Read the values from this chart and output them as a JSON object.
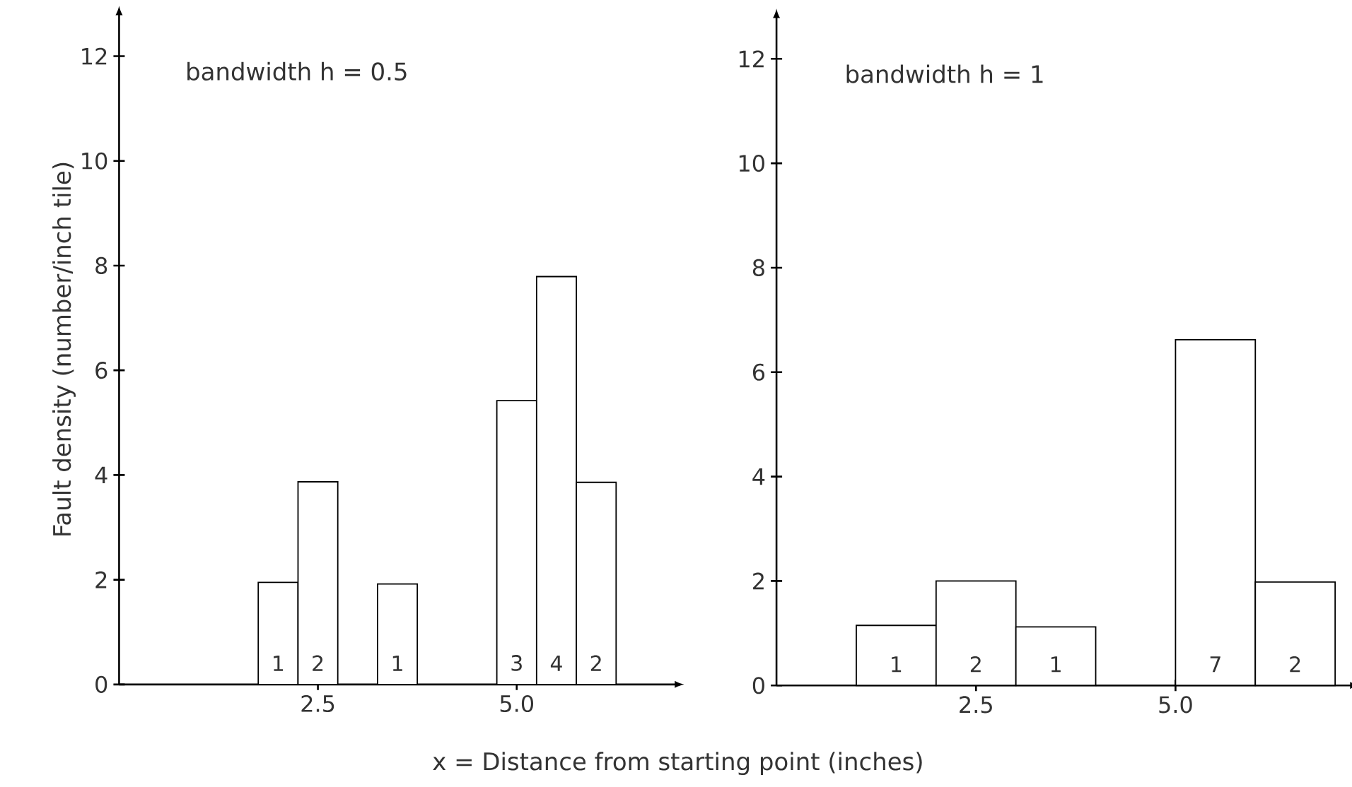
{
  "chart_data": [
    {
      "type": "histogram",
      "title": "bandwidth h = 0.5",
      "xlabel": "x = Distance from starting point (inches)",
      "ylabel": "Fault density (number/inch tile)",
      "bins": [
        1.75,
        2.25,
        2.75,
        3.25,
        3.75,
        4.25,
        4.75,
        5.25,
        5.75,
        6.25
      ],
      "values": [
        1.95,
        3.87,
        0,
        1.92,
        0,
        0,
        5.42,
        7.79,
        3.86
      ],
      "color": "#ffffff",
      "xlim": [
        0,
        7
      ],
      "ylim": [
        0,
        12.8
      ],
      "xticks": [
        2.5,
        {
          "value": 5,
          "label": "5.0"
        }
      ],
      "yticks": [
        0,
        2,
        4,
        6,
        8,
        10,
        12
      ],
      "annotations": [
        "1",
        "2",
        "1",
        "3",
        "4",
        "2"
      ]
    },
    {
      "type": "histogram",
      "title": "bandwidth h = 1",
      "bins": [
        1,
        2,
        3,
        4,
        5,
        6,
        7
      ],
      "values": [
        1.15,
        2.0,
        1.12,
        0,
        6.62,
        1.98
      ],
      "color": "#ffffff",
      "xlim": [
        0,
        7.2
      ],
      "ylim": [
        0,
        12.8
      ],
      "xticks": [
        2.5,
        {
          "value": 5,
          "label": "5.0"
        }
      ],
      "yticks": [
        0,
        2,
        4,
        6,
        8,
        10,
        12
      ],
      "annotations": [
        "1",
        "2",
        "1",
        "7",
        "2"
      ]
    }
  ]
}
